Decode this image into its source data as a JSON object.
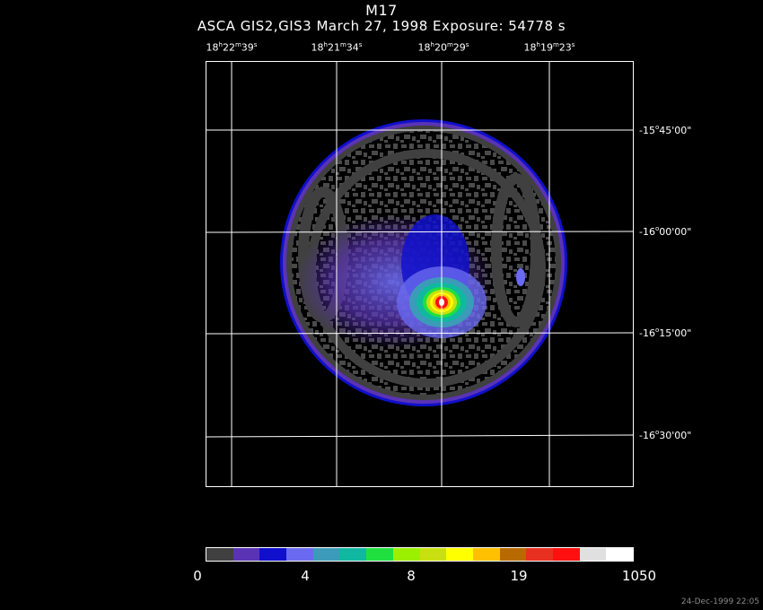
{
  "title": "M17",
  "subtitle": "ASCA GIS2,GIS3 March 27, 1998 Exposure: 54778 s",
  "ra_labels": [
    {
      "h": "18",
      "m": "22",
      "s": "39"
    },
    {
      "h": "18",
      "m": "21",
      "s": "34"
    },
    {
      "h": "18",
      "m": "20",
      "s": "29"
    },
    {
      "h": "18",
      "m": "19",
      "s": "23"
    }
  ],
  "dec_labels": [
    {
      "sign": "-",
      "deg": "15",
      "min": "45'00\""
    },
    {
      "sign": "-",
      "deg": "16",
      "min": "00'00\""
    },
    {
      "sign": "-",
      "deg": "16",
      "min": "15'00\""
    },
    {
      "sign": "-",
      "deg": "16",
      "min": "30'00\""
    }
  ],
  "colorbar": {
    "colors": [
      "#404040",
      "#5a33b5",
      "#1010cc",
      "#6a6af0",
      "#3b9bb8",
      "#10b8a0",
      "#20e040",
      "#9af000",
      "#c8e010",
      "#ffff00",
      "#ffc000",
      "#b86a00",
      "#e83020",
      "#ff1010",
      "#e0e0e0",
      "#ffffff"
    ],
    "labels": [
      "0",
      "4",
      "8",
      "19",
      "1050"
    ]
  },
  "timestamp": "24-Dec-1999 22:05"
}
